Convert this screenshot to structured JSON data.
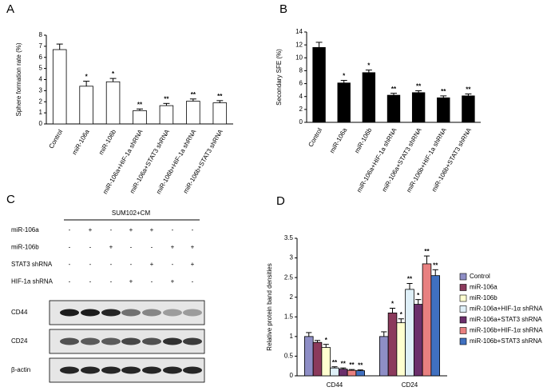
{
  "chart_data": [
    {
      "panel": "A",
      "type": "bar",
      "ylabel": "Sphere formation rate (%)",
      "categories": [
        "Control",
        "miR-106a",
        "miR-106b",
        "miR-106a+HIF-1a shRNA",
        "miR-106a+STAT3 shRNA",
        "miR-106b+HIF-1a shRNA",
        "miR-106b+STAT3 shRNA"
      ],
      "values": [
        6.7,
        3.4,
        3.8,
        1.2,
        1.65,
        2.05,
        1.9
      ],
      "errors": [
        0.5,
        0.45,
        0.3,
        0.15,
        0.2,
        0.2,
        0.2
      ],
      "significance": [
        null,
        "*",
        "*",
        "**",
        "**",
        "**",
        "**"
      ],
      "color": "#ffffff",
      "ylim": [
        0,
        8
      ],
      "yticks": [
        0,
        1,
        2,
        3,
        4,
        5,
        6,
        7,
        8
      ]
    },
    {
      "panel": "B",
      "type": "bar",
      "ylabel": "Secondary SFE (%)",
      "categories": [
        "Control",
        "miR-106a",
        "miR-106b",
        "miR-106a+HIF-1a shRNA",
        "miR-106a+STAT3 shRNA",
        "miR-106b+HIF-1a shRNA",
        "miR-106b+STAT3 shRNA"
      ],
      "values": [
        11.6,
        6.1,
        7.7,
        4.2,
        4.6,
        3.8,
        4.1
      ],
      "errors": [
        0.8,
        0.4,
        0.4,
        0.3,
        0.3,
        0.3,
        0.3
      ],
      "significance": [
        null,
        "*",
        "*",
        "**",
        "**",
        "**",
        "**"
      ],
      "color": "#000000",
      "ylim": [
        0,
        14
      ],
      "yticks": [
        0,
        2,
        4,
        6,
        8,
        10,
        12,
        14
      ]
    },
    {
      "panel": "D",
      "type": "bar",
      "ylabel": "Relative protein band densities",
      "categories": [
        "CD44",
        "CD24"
      ],
      "legend": "right",
      "series": [
        {
          "name": "Control",
          "color": "#8e8ec6",
          "values": [
            1.0,
            1.0
          ],
          "errors": [
            0.1,
            0.12
          ],
          "significance": [
            null,
            null
          ]
        },
        {
          "name": "miR-106a",
          "color": "#8b3a5c",
          "values": [
            0.85,
            1.6
          ],
          "errors": [
            0.05,
            0.12
          ],
          "significance": [
            null,
            "*"
          ]
        },
        {
          "name": "miR-106b",
          "color": "#ffffd0",
          "values": [
            0.72,
            1.35
          ],
          "errors": [
            0.08,
            0.1
          ],
          "significance": [
            "*",
            "*"
          ]
        },
        {
          "name": "miR-106a+HIF-1α shRNA",
          "color": "#dff0f8",
          "values": [
            0.2,
            2.2
          ],
          "errors": [
            0.03,
            0.15
          ],
          "significance": [
            "**",
            "**"
          ]
        },
        {
          "name": "miR-106a+STAT3 shRNA",
          "color": "#6b2f6b",
          "values": [
            0.17,
            1.82
          ],
          "errors": [
            0.03,
            0.12
          ],
          "significance": [
            "**",
            "*"
          ]
        },
        {
          "name": "miR-106b+HIF-1α shRNA",
          "color": "#e88080",
          "values": [
            0.14,
            2.85
          ],
          "errors": [
            0.02,
            0.2
          ],
          "significance": [
            "**",
            "**"
          ]
        },
        {
          "name": "miR-106b+STAT3 shRNA",
          "color": "#4070c0",
          "values": [
            0.13,
            2.55
          ],
          "errors": [
            0.02,
            0.15
          ],
          "significance": [
            "**",
            "**"
          ]
        }
      ],
      "ylim": [
        0,
        3.5
      ],
      "yticks": [
        0,
        0.5,
        1,
        1.5,
        2,
        2.5,
        3,
        3.5
      ]
    }
  ],
  "blot": {
    "panel": "C",
    "header": "SUM102+CM",
    "rows": [
      {
        "label": "miR-106a",
        "signs": [
          "-",
          "+",
          "-",
          "+",
          "+",
          "-",
          "-"
        ]
      },
      {
        "label": "miR-106b",
        "signs": [
          "-",
          "-",
          "+",
          "-",
          "-",
          "+",
          "+"
        ]
      },
      {
        "label": "STAT3 shRNA",
        "signs": [
          "-",
          "-",
          "-",
          "-",
          "+",
          "-",
          "+"
        ]
      },
      {
        "label": "HIF-1a shRNA",
        "signs": [
          "-",
          "-",
          "-",
          "+",
          "-",
          "+",
          "-"
        ]
      }
    ],
    "bands": [
      "CD44",
      "CD24",
      "β-actin"
    ]
  }
}
